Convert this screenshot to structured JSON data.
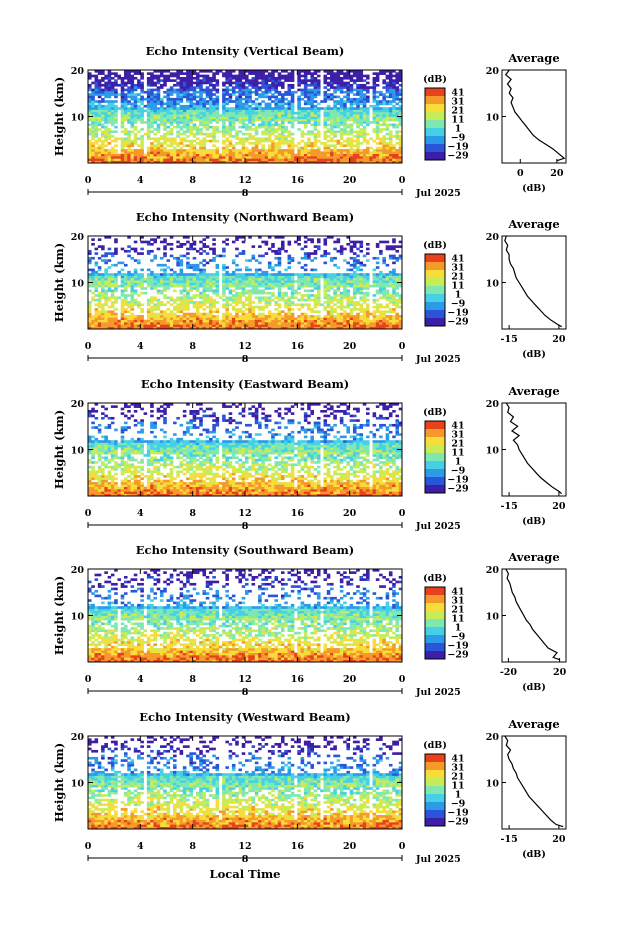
{
  "footer_label": "Local Time",
  "colorbar": {
    "unit": "(dB)",
    "tick_labels": [
      "41",
      "31",
      "21",
      "11",
      "1",
      "−9",
      "−19",
      "−29"
    ],
    "range": [
      -29,
      41
    ],
    "colors": [
      "#3d1ea8",
      "#2b55d8",
      "#2b9be8",
      "#45d0e6",
      "#7fe8b0",
      "#c8ec58",
      "#f6dd3a",
      "#f59a2a",
      "#e8421c"
    ]
  },
  "chart_data": [
    {
      "type": "heatmap",
      "title": "Echo Intensity (Vertical Beam)",
      "ylabel": "Height (km)",
      "x_ticks": [
        "0",
        "4",
        "8",
        "12",
        "16",
        "20",
        "0"
      ],
      "y_ticks": [
        "20",
        "10"
      ],
      "xlim": [
        0,
        24
      ],
      "ylim": [
        0,
        20
      ],
      "date_label": "Jul 2025",
      "day_marker": "8",
      "avg_panel": {
        "title": "Average",
        "xlabel": "(dB)",
        "x_ticks": [
          "0",
          "20"
        ],
        "y_ticks": [
          "20",
          "10"
        ],
        "xlim": [
          -10,
          25
        ],
        "profile_height": [
          0.5,
          1,
          2,
          3,
          4,
          5,
          6,
          7,
          8,
          9,
          10,
          11,
          12,
          13,
          14,
          15,
          16,
          17,
          18,
          19,
          20
        ],
        "profile_db": [
          20,
          24,
          21,
          18,
          14,
          10,
          7,
          5,
          3,
          1,
          -1,
          -3,
          -4,
          -5,
          -4,
          -6,
          -5,
          -7,
          -5,
          -8,
          -6
        ]
      }
    },
    {
      "type": "heatmap",
      "title": "Echo Intensity (Northward Beam)",
      "ylabel": "Height (km)",
      "x_ticks": [
        "0",
        "4",
        "8",
        "12",
        "16",
        "20",
        "0"
      ],
      "y_ticks": [
        "20",
        "10"
      ],
      "xlim": [
        0,
        24
      ],
      "ylim": [
        0,
        20
      ],
      "date_label": "Jul 2025",
      "day_marker": "8",
      "avg_panel": {
        "title": "Average",
        "xlabel": "(dB)",
        "x_ticks": [
          "-15",
          "20"
        ],
        "y_ticks": [
          "20",
          "10"
        ],
        "xlim": [
          -20,
          25
        ],
        "profile_height": [
          0.5,
          1,
          2,
          3,
          4,
          5,
          6,
          7,
          8,
          9,
          10,
          11,
          12,
          13,
          14,
          15,
          16,
          17,
          18,
          19,
          20
        ],
        "profile_db": [
          22,
          19,
          14,
          10,
          7,
          4,
          1,
          -2,
          -4,
          -6,
          -8,
          -10,
          -11,
          -12,
          -14,
          -15,
          -15,
          -17,
          -16,
          -18,
          -17
        ]
      }
    },
    {
      "type": "heatmap",
      "title": "Echo Intensity (Eastward Beam)",
      "ylabel": "Height (km)",
      "x_ticks": [
        "0",
        "4",
        "8",
        "12",
        "16",
        "20",
        "0"
      ],
      "y_ticks": [
        "20",
        "10"
      ],
      "xlim": [
        0,
        24
      ],
      "ylim": [
        0,
        20
      ],
      "date_label": "Jul 2025",
      "day_marker": "8",
      "avg_panel": {
        "title": "Average",
        "xlabel": "(dB)",
        "x_ticks": [
          "-15",
          "20"
        ],
        "y_ticks": [
          "20",
          "10"
        ],
        "xlim": [
          -20,
          25
        ],
        "profile_height": [
          0.5,
          1,
          2,
          3,
          4,
          5,
          6,
          7,
          8,
          9,
          10,
          11,
          12,
          13,
          14,
          15,
          16,
          17,
          18,
          19,
          20
        ],
        "profile_db": [
          22,
          20,
          15,
          11,
          7,
          4,
          1,
          -2,
          -4,
          -6,
          -8,
          -9,
          -12,
          -8,
          -13,
          -9,
          -14,
          -12,
          -16,
          -15,
          -17
        ]
      }
    },
    {
      "type": "heatmap",
      "title": "Echo Intensity (Southward Beam)",
      "ylabel": "Height (km)",
      "x_ticks": [
        "0",
        "4",
        "8",
        "12",
        "16",
        "20",
        "0"
      ],
      "y_ticks": [
        "20",
        "10"
      ],
      "xlim": [
        0,
        24
      ],
      "ylim": [
        0,
        20
      ],
      "date_label": "Jul 2025",
      "day_marker": "8",
      "avg_panel": {
        "title": "Average",
        "xlabel": "(dB)",
        "x_ticks": [
          "-20",
          "20"
        ],
        "y_ticks": [
          "20",
          "10"
        ],
        "xlim": [
          -25,
          25
        ],
        "profile_height": [
          0.5,
          1,
          2,
          3,
          4,
          5,
          6,
          7,
          8,
          9,
          10,
          11,
          12,
          13,
          14,
          15,
          16,
          17,
          18,
          19,
          20
        ],
        "profile_db": [
          20,
          15,
          18,
          11,
          8,
          5,
          2,
          -1,
          -3,
          -6,
          -8,
          -10,
          -12,
          -14,
          -15,
          -17,
          -18,
          -19,
          -21,
          -20,
          -22
        ]
      }
    },
    {
      "type": "heatmap",
      "title": "Echo Intensity (Westward Beam)",
      "ylabel": "Height (km)",
      "x_ticks": [
        "0",
        "4",
        "8",
        "12",
        "16",
        "20",
        "0"
      ],
      "y_ticks": [
        "20",
        "10"
      ],
      "xlim": [
        0,
        24
      ],
      "ylim": [
        0,
        20
      ],
      "date_label": "Jul 2025",
      "day_marker": "8",
      "avg_panel": {
        "title": "Average",
        "xlabel": "(dB)",
        "x_ticks": [
          "-15",
          "20"
        ],
        "y_ticks": [
          "20",
          "10"
        ],
        "xlim": [
          -20,
          25
        ],
        "profile_height": [
          0.5,
          1,
          2,
          3,
          4,
          5,
          6,
          7,
          8,
          9,
          10,
          11,
          12,
          13,
          14,
          15,
          16,
          17,
          18,
          19,
          20
        ],
        "profile_db": [
          23,
          18,
          14,
          11,
          8,
          5,
          2,
          -1,
          -3,
          -5,
          -7,
          -9,
          -10,
          -12,
          -13,
          -15,
          -16,
          -14,
          -17,
          -16,
          -18
        ]
      }
    }
  ]
}
